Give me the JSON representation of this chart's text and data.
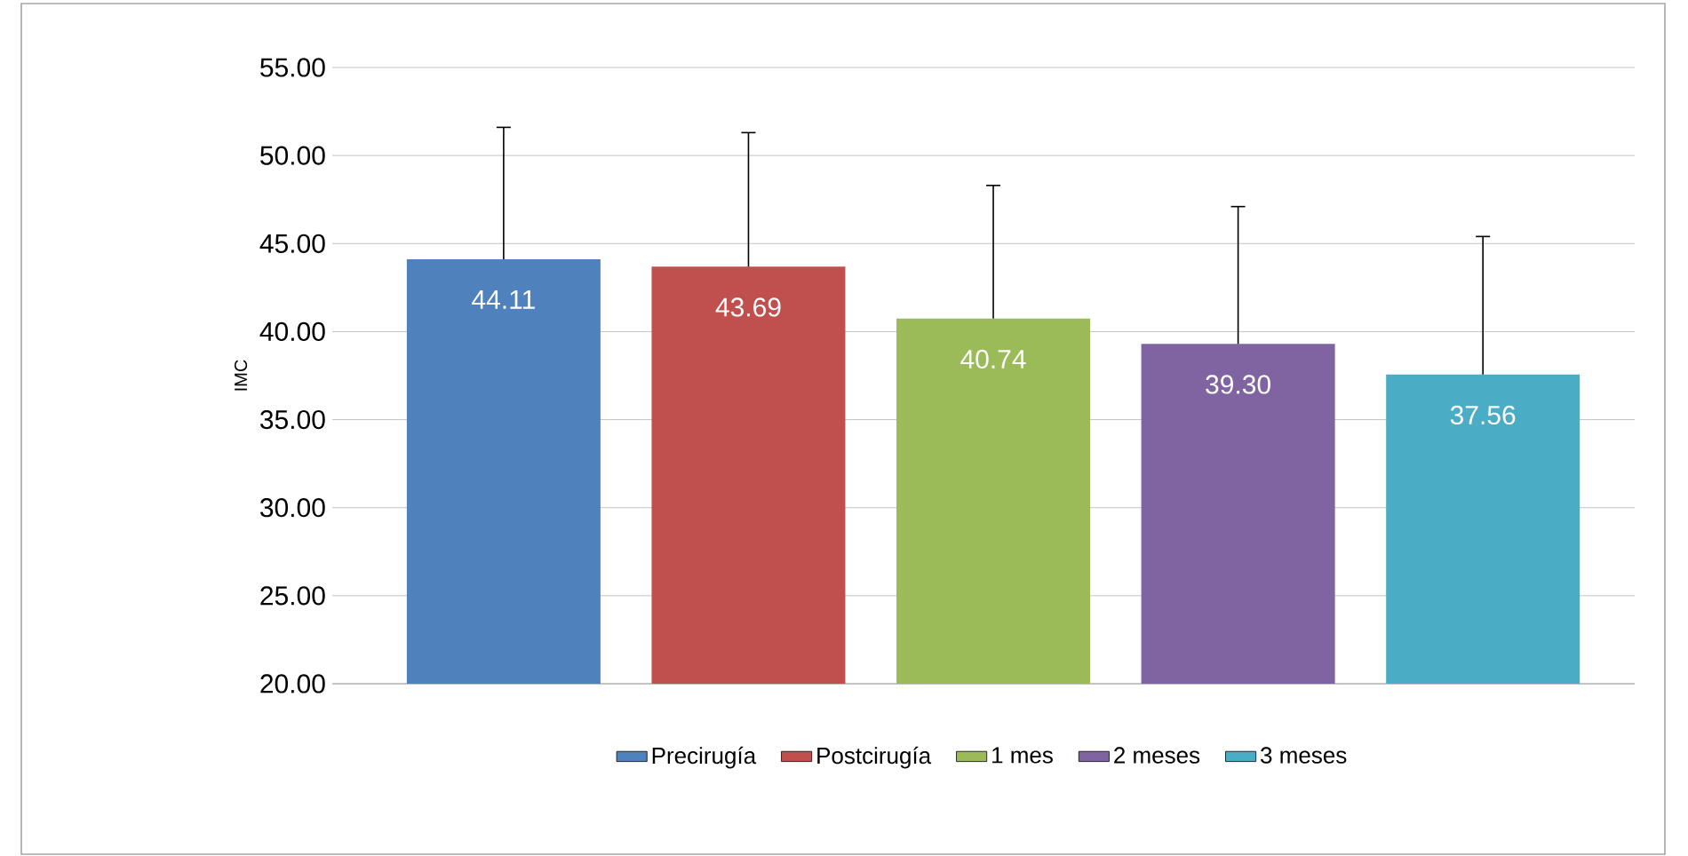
{
  "chart_data": {
    "type": "bar",
    "ylabel": "IMC",
    "categories": [
      null,
      null,
      null,
      null,
      null
    ],
    "series": [
      {
        "name": "Precirugía",
        "color": "#4f81bd",
        "values": [
          44.11,
          null,
          null,
          null,
          null
        ],
        "value_labels": [
          "44.11",
          null,
          null,
          null,
          null
        ],
        "errors": [
          [
            44.11,
            51.6
          ],
          null,
          null,
          null,
          null
        ]
      },
      {
        "name": "Postcirugía",
        "color": "#c0504d",
        "values": [
          null,
          43.69,
          null,
          null,
          null
        ],
        "value_labels": [
          null,
          "43.69",
          null,
          null,
          null
        ],
        "errors": [
          null,
          [
            43.69,
            51.3
          ],
          null,
          null,
          null
        ]
      },
      {
        "name": "1 mes",
        "color": "#9bbb59",
        "values": [
          null,
          null,
          40.74,
          null,
          null
        ],
        "value_labels": [
          null,
          null,
          "40.74",
          null,
          null
        ],
        "errors": [
          null,
          null,
          [
            40.74,
            48.3
          ],
          null,
          null
        ]
      },
      {
        "name": "2 meses",
        "color": "#8064a2",
        "values": [
          null,
          null,
          null,
          39.3,
          null
        ],
        "value_labels": [
          null,
          null,
          null,
          "39.30",
          null
        ],
        "errors": [
          null,
          null,
          null,
          [
            39.3,
            47.1
          ],
          null
        ]
      },
      {
        "name": "3 meses",
        "color": "#4bacc6",
        "values": [
          null,
          null,
          null,
          null,
          37.56
        ],
        "value_labels": [
          null,
          null,
          null,
          null,
          "37.56"
        ],
        "errors": [
          null,
          null,
          null,
          null,
          [
            37.56,
            45.4
          ]
        ]
      }
    ],
    "ylim": [
      20,
      55
    ],
    "yticks": [
      {
        "value": 20,
        "label": "20.00"
      },
      {
        "value": 25,
        "label": "25.00"
      },
      {
        "value": 30,
        "label": "30.00"
      },
      {
        "value": 35,
        "label": "35.00"
      },
      {
        "value": 40,
        "label": "40.00"
      },
      {
        "value": 45,
        "label": "45.00"
      },
      {
        "value": 50,
        "label": "50.00"
      },
      {
        "value": 55,
        "label": "55.00"
      }
    ],
    "grid": "y",
    "legend": "bottom"
  }
}
